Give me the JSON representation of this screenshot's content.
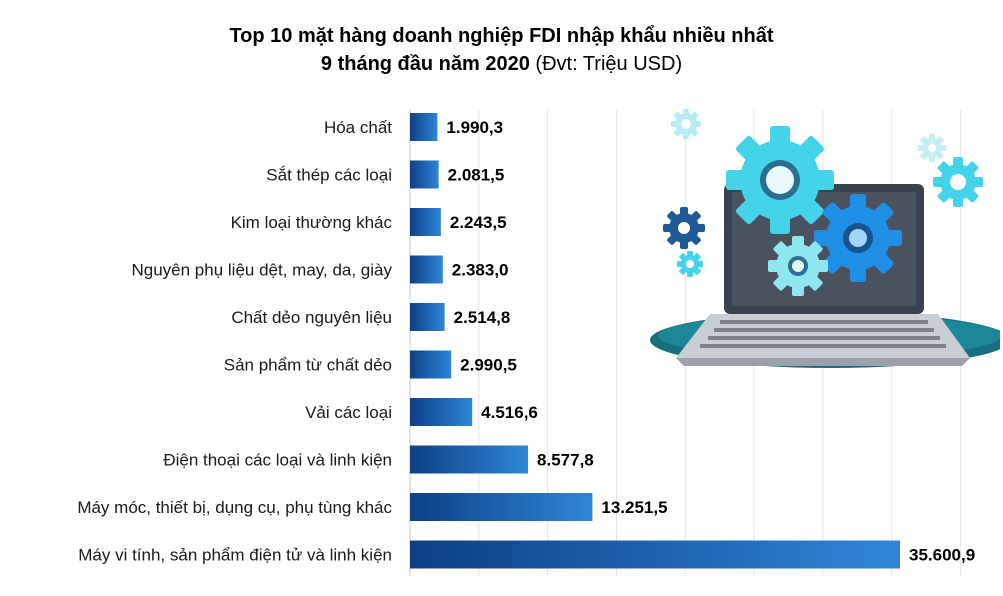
{
  "title_line1": "Top 10 mặt hàng doanh nghiệp FDI nhập khẩu nhiều nhất",
  "title_line2_bold": "9 tháng đầu năm 2020",
  "title_line2_unit": "(Đvt: Triệu USD)",
  "colors": {
    "bar_dark": "#0d3f86",
    "bar_light": "#2f86d8",
    "gear_cyan": "#45d3ea",
    "gear_blue": "#1f78d1",
    "gear_navy": "#1d5a96",
    "laptop_dark": "#3b4350",
    "laptop_base": "#bfc5cc",
    "shadow_teal": "#176e7d"
  },
  "illustration_icons": [
    "laptop-icon",
    "gear-icon"
  ],
  "chart_data": {
    "type": "bar",
    "orientation": "horizontal",
    "title": "Top 10 mặt hàng doanh nghiệp FDI nhập khẩu nhiều nhất 9 tháng đầu năm 2020 (Đvt: Triệu USD)",
    "categories": [
      "Hóa chất",
      "Sắt thép các loại",
      "Kim loại thường khác",
      "Nguyên phụ liệu dệt, may, da, giày",
      "Chất dẻo nguyên liệu",
      "Sản phẩm từ chất dẻo",
      "Vải các loại",
      "Điện thoại các loại và linh kiện",
      "Máy móc, thiết bị, dụng cụ, phụ tùng khác",
      "Máy vi tính, sản phẩm điện tử và linh kiện"
    ],
    "values": [
      1990.3,
      2081.5,
      2243.5,
      2383.0,
      2514.8,
      2990.5,
      4516.6,
      8577.8,
      13251.5,
      35600.9
    ],
    "value_labels": [
      "1.990,3",
      "2.081,5",
      "2.243,5",
      "2.383,0",
      "2.514,8",
      "2.990,5",
      "4.516,6",
      "8.577,8",
      "13.251,5",
      "35.600,9"
    ],
    "xlim": [
      0,
      40000
    ],
    "grid": true,
    "legend": "none"
  }
}
